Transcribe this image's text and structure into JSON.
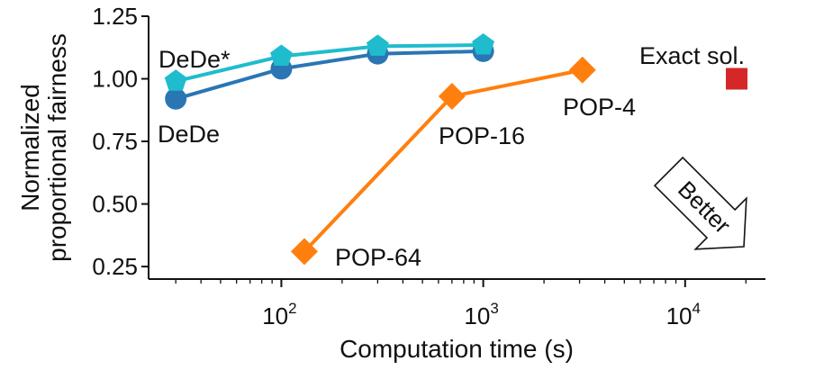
{
  "chart_data": {
    "type": "line",
    "title": "",
    "xlabel": "Computation time (s)",
    "ylabel_lines": [
      "Normalized",
      "proportional fairness"
    ],
    "xscale": "log",
    "xlim": [
      22,
      25000
    ],
    "ylim": [
      0.2,
      1.25
    ],
    "grid": false,
    "legend": "none (series labeled inline)",
    "yticks": [
      {
        "value": 0.25,
        "label": "0.25"
      },
      {
        "value": 0.5,
        "label": "0.50"
      },
      {
        "value": 0.75,
        "label": "0.75"
      },
      {
        "value": 1.0,
        "label": "1.00"
      },
      {
        "value": 1.25,
        "label": "1.25"
      }
    ],
    "xticks": [
      {
        "value": 100,
        "base": "10",
        "exp": "2"
      },
      {
        "value": 1000,
        "base": "10",
        "exp": "3"
      },
      {
        "value": 10000,
        "base": "10",
        "exp": "4"
      }
    ],
    "series": [
      {
        "name": "DeDe",
        "color": "#2a76b3",
        "marker": "circle",
        "connected": true,
        "x": [
          30,
          100,
          300,
          1000
        ],
        "y": [
          0.92,
          1.04,
          1.1,
          1.11
        ]
      },
      {
        "name": "DeDe*",
        "color": "#1fbcce",
        "marker": "pentagon",
        "connected": true,
        "x": [
          30,
          100,
          300,
          1000
        ],
        "y": [
          0.99,
          1.09,
          1.13,
          1.135
        ]
      },
      {
        "name": "POP",
        "color": "#ff7f0e",
        "marker": "diamond",
        "connected": true,
        "x": [
          130,
          700,
          3100
        ],
        "y": [
          0.31,
          0.93,
          1.035
        ],
        "point_labels": [
          "POP-64",
          "POP-16",
          "POP-4"
        ]
      },
      {
        "name": "Exact sol.",
        "color": "#d62728",
        "marker": "square",
        "connected": false,
        "x": [
          18000
        ],
        "y": [
          1.0
        ]
      }
    ],
    "annotations": {
      "dede_label": "DeDe",
      "dede_star_label": "DeDe*",
      "exact_label": "Exact sol.",
      "better_arrow": "Better"
    }
  }
}
